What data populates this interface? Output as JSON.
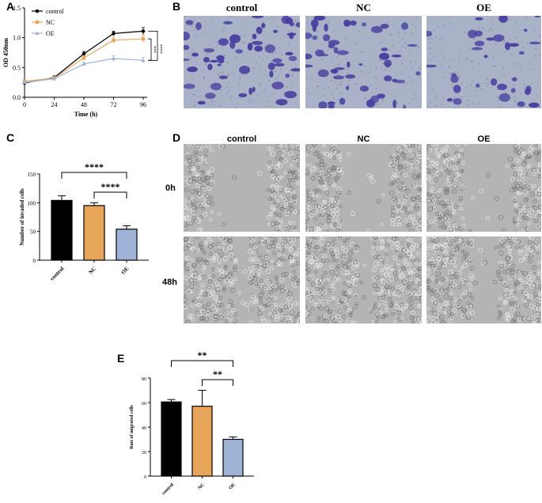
{
  "panels": {
    "a": "A",
    "b": "B",
    "c": "C",
    "d": "D",
    "e": "E"
  },
  "panel_b": {
    "labels": [
      "control",
      "NC",
      "OE"
    ],
    "stain_color": "#4a3fa0",
    "background_color": "#a9b2c6"
  },
  "panel_d": {
    "column_labels": [
      "control",
      "NC",
      "OE"
    ],
    "row_labels": [
      "0h",
      "48h"
    ],
    "background_color": "#b4b4b4"
  },
  "colors": {
    "control": "#000000",
    "NC": "#e8a65a",
    "OE": "#9fb3d6"
  },
  "chart_data": [
    {
      "id": "A",
      "type": "line",
      "xlabel": "Time (h)",
      "ylabel": "OD 450nm",
      "x": [
        0,
        24,
        48,
        72,
        96
      ],
      "xticks": [
        "0",
        "24",
        "48",
        "72",
        "96"
      ],
      "ylim": [
        0.0,
        1.5
      ],
      "yticks": [
        "0.0",
        "0.5",
        "1.0",
        "1.5"
      ],
      "legend_position": "top-left",
      "series": [
        {
          "name": "control",
          "marker": "circle",
          "values": [
            0.24,
            0.33,
            0.73,
            1.07,
            1.11
          ],
          "errors": [
            0.02,
            0.03,
            0.04,
            0.04,
            0.06
          ]
        },
        {
          "name": "NC",
          "marker": "square",
          "values": [
            0.27,
            0.32,
            0.66,
            0.96,
            0.98
          ],
          "errors": [
            0.02,
            0.03,
            0.04,
            0.05,
            0.06
          ]
        },
        {
          "name": "OE",
          "marker": "triangle",
          "values": [
            0.25,
            0.31,
            0.56,
            0.65,
            0.62
          ],
          "errors": [
            0.02,
            0.03,
            0.03,
            0.05,
            0.05
          ]
        }
      ],
      "significance": [
        "***",
        "****"
      ]
    },
    {
      "id": "C",
      "type": "bar",
      "ylabel": "Number of invaded cells",
      "categories": [
        "control",
        "NC",
        "OE"
      ],
      "values": [
        104,
        95,
        54
      ],
      "errors": [
        8,
        5,
        6
      ],
      "ylim": [
        0,
        150
      ],
      "yticks": [
        "0",
        "50",
        "100",
        "150"
      ],
      "significance": [
        {
          "from": "control",
          "to": "OE",
          "label": "****"
        },
        {
          "from": "NC",
          "to": "OE",
          "label": "****"
        }
      ]
    },
    {
      "id": "E",
      "type": "bar",
      "ylabel": "Rate of migrated cells",
      "categories": [
        "control",
        "NC",
        "OE"
      ],
      "values": [
        60.5,
        57,
        30
      ],
      "errors": [
        2,
        13,
        2
      ],
      "ylim": [
        0,
        80
      ],
      "yticks": [
        "0",
        "20",
        "40",
        "60",
        "80"
      ],
      "significance": [
        {
          "from": "control",
          "to": "OE",
          "label": "**"
        },
        {
          "from": "NC",
          "to": "OE",
          "label": "**"
        }
      ]
    }
  ]
}
